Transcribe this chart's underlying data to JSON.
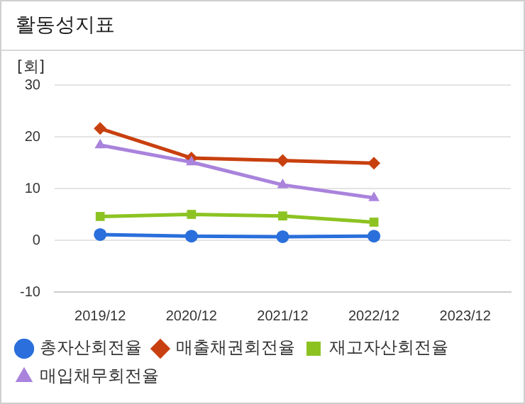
{
  "chart_data": {
    "type": "line",
    "title": "활동성지표",
    "ylabel": "[회]",
    "categories": [
      "2019/12",
      "2020/12",
      "2021/12",
      "2022/12",
      "2023/12"
    ],
    "series": [
      {
        "name": "총자산회전율",
        "color": "#2a6fdb",
        "marker": "circle",
        "values": [
          1.1,
          0.8,
          0.7,
          0.8,
          null
        ]
      },
      {
        "name": "매출채권회전율",
        "color": "#c8400f",
        "marker": "diamond",
        "values": [
          21.6,
          15.9,
          15.4,
          14.9,
          null
        ]
      },
      {
        "name": "재고자산회전율",
        "color": "#8cc322",
        "marker": "square",
        "values": [
          4.6,
          5.0,
          4.7,
          3.5,
          null
        ]
      },
      {
        "name": "매입채무회전율",
        "color": "#a983dc",
        "marker": "triangle",
        "values": [
          18.4,
          15.1,
          10.7,
          8.2,
          null
        ]
      }
    ],
    "ylim": [
      -10,
      30
    ],
    "yticks": [
      -10,
      0,
      10,
      20,
      30
    ],
    "grid": "y",
    "legend": "bottom",
    "line_style": "solid"
  }
}
